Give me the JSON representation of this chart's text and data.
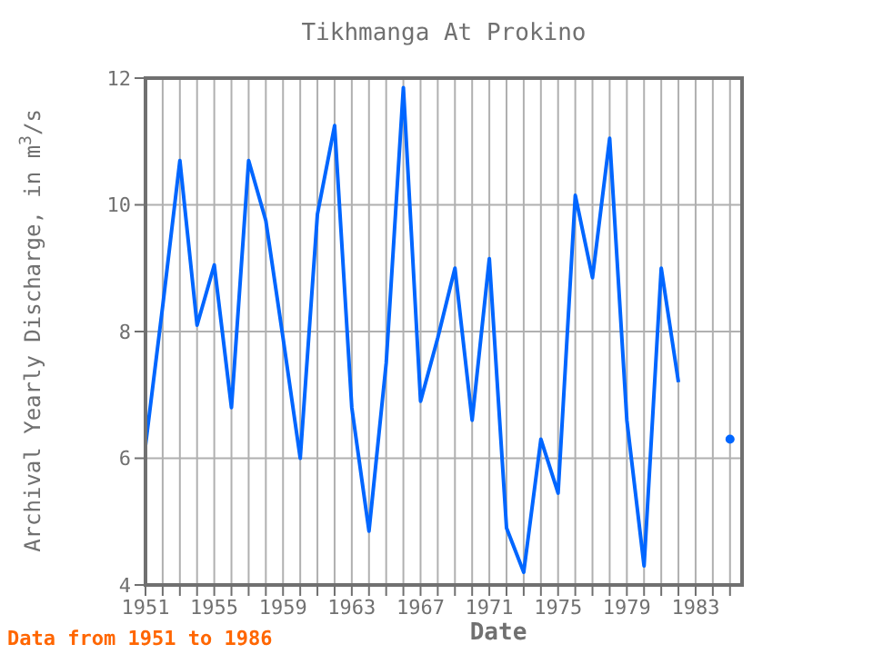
{
  "chart_data": {
    "type": "line",
    "title": "Tikhmanga At Prokino",
    "xlabel": "Date",
    "ylabel": "Archival Yearly Discharge, in m$^{3}$/s",
    "annotations": [
      "Data from 1951 to 1986"
    ],
    "series": [
      {
        "type": "line",
        "color": "#0066ff",
        "marker": "none",
        "x": [
          1951,
          1952,
          1953,
          1954,
          1955,
          1956,
          1957,
          1958,
          1959,
          1960,
          1961,
          1962,
          1963,
          1964,
          1965,
          1966,
          1967,
          1968,
          1969,
          1970,
          1971,
          1972,
          1973,
          1974,
          1975,
          1976,
          1977,
          1978,
          1979,
          1980,
          1981,
          1982
        ],
        "values": [
          6.2,
          8.4,
          10.7,
          8.1,
          9.05,
          6.8,
          10.7,
          9.75,
          7.9,
          6.0,
          9.85,
          11.25,
          6.8,
          4.85,
          7.5,
          11.85,
          6.9,
          7.9,
          9.0,
          6.6,
          9.15,
          4.9,
          4.2,
          6.3,
          5.45,
          10.15,
          8.85,
          11.05,
          6.6,
          4.3,
          9.0,
          7.2
        ]
      },
      {
        "type": "scatter",
        "color": "#0066ff",
        "marker": "circle",
        "x": [
          1985
        ],
        "values": [
          6.3
        ]
      }
    ],
    "xlim": [
      1951,
      1985.7
    ],
    "xticks": [
      1951,
      {
        "value": 1952,
        "label": null
      },
      {
        "value": 1953,
        "label": null
      },
      {
        "value": 1954,
        "label": null
      },
      1955,
      {
        "value": 1956,
        "label": null
      },
      {
        "value": 1957,
        "label": null
      },
      {
        "value": 1958,
        "label": null
      },
      1959,
      {
        "value": 1960,
        "label": null
      },
      {
        "value": 1961,
        "label": null
      },
      {
        "value": 1962,
        "label": null
      },
      1963,
      {
        "value": 1964,
        "label": null
      },
      {
        "value": 1965,
        "label": null
      },
      {
        "value": 1966,
        "label": null
      },
      1967,
      {
        "value": 1968,
        "label": null
      },
      {
        "value": 1969,
        "label": null
      },
      {
        "value": 1970,
        "label": null
      },
      1971,
      {
        "value": 1972,
        "label": null
      },
      {
        "value": 1973,
        "label": null
      },
      {
        "value": 1974,
        "label": null
      },
      1975,
      {
        "value": 1976,
        "label": null
      },
      {
        "value": 1977,
        "label": null
      },
      {
        "value": 1978,
        "label": null
      },
      1979,
      {
        "value": 1980,
        "label": null
      },
      {
        "value": 1981,
        "label": null
      },
      {
        "value": 1982,
        "label": null
      },
      1983,
      {
        "value": 1984,
        "label": null
      },
      {
        "value": 1985,
        "label": null
      }
    ],
    "ylim": [
      4,
      12
    ],
    "yticks": [
      4,
      6,
      8,
      10,
      12
    ],
    "grid": true
  }
}
